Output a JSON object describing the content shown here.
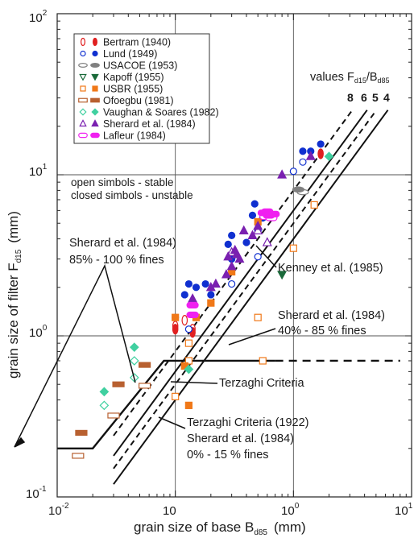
{
  "chart_data": {
    "type": "scatter",
    "title": "",
    "xlabel": "grain size of base B",
    "xlabel_sub": "d85",
    "xlabel_unit": "(mm)",
    "ylabel": "grain size of filter F",
    "ylabel_sub": "d15",
    "ylabel_unit": "(mm)",
    "x_scale": "log",
    "y_scale": "log",
    "xlim": [
      0.01,
      10
    ],
    "ylim": [
      0.1,
      100
    ],
    "x_ticks": [
      {
        "base": "10",
        "exp": "-2"
      },
      {
        "base": "10",
        "exp": "0"
      },
      {
        "base": "10",
        "exp": "1"
      }
    ],
    "x_tick_labels_plain": [
      "10",
      "10"
    ],
    "y_ticks": [
      {
        "base": "10",
        "exp": "-1"
      },
      {
        "base": "10",
        "exp": "0"
      },
      {
        "base": "10",
        "exp": "1"
      },
      {
        "base": "10",
        "exp": "2"
      }
    ],
    "grid": "major",
    "legend_placement": "top-left",
    "series": [
      {
        "name": "Bertram (1940)",
        "color": "#e02020",
        "open": [
          [
            0.1,
            1.15
          ],
          [
            0.12,
            1.25
          ],
          [
            0.14,
            1.1
          ]
        ],
        "closed": [
          [
            0.1,
            1.1
          ],
          [
            1.7,
            13.5
          ],
          [
            0.14,
            1.05
          ]
        ]
      },
      {
        "name": "Lund (1949)",
        "color": "#1030d0",
        "open": [
          [
            0.13,
            1.1
          ],
          [
            0.3,
            2.1
          ],
          [
            0.5,
            3.1
          ],
          [
            1.0,
            10.5
          ],
          [
            1.2,
            12.0
          ]
        ],
        "closed": [
          [
            0.12,
            1.8
          ],
          [
            0.13,
            2.1
          ],
          [
            0.15,
            2.0
          ],
          [
            0.18,
            2.1
          ],
          [
            0.2,
            1.8
          ],
          [
            0.28,
            3.7
          ],
          [
            0.3,
            3.0
          ],
          [
            0.4,
            3.8
          ],
          [
            0.45,
            5.6
          ],
          [
            0.47,
            6.6
          ],
          [
            0.5,
            4.5
          ],
          [
            0.55,
            5.4
          ],
          [
            1.2,
            14.0
          ],
          [
            1.4,
            14.0
          ],
          [
            1.7,
            15.5
          ],
          [
            0.1,
            1.3
          ],
          [
            0.3,
            4.2
          ]
        ]
      },
      {
        "name": "USACOE (1953)",
        "color": "#808080",
        "open": [
          [
            1.2,
            7.8
          ]
        ],
        "closed": [
          [
            1.1,
            8.1
          ]
        ]
      },
      {
        "name": "Kapoff (1955)",
        "color": "#1a6a3a",
        "open": [],
        "closed": [
          [
            0.8,
            2.4
          ]
        ]
      },
      {
        "name": "USBR (1955)",
        "color": "#f07818",
        "open": [
          [
            0.13,
            0.9
          ],
          [
            0.5,
            1.3
          ],
          [
            0.55,
            0.7
          ],
          [
            0.1,
            0.42
          ],
          [
            0.13,
            0.7
          ],
          [
            1.5,
            6.5
          ],
          [
            1.0,
            3.5
          ]
        ],
        "closed": [
          [
            0.1,
            1.3
          ],
          [
            0.12,
            0.65
          ],
          [
            0.13,
            0.37
          ],
          [
            0.15,
            1.3
          ],
          [
            0.2,
            1.6
          ],
          [
            0.3,
            2.5
          ],
          [
            0.5,
            5.1
          ]
        ]
      },
      {
        "name": "Ofoegbu (1981)",
        "color": "#b86030",
        "open": [
          [
            0.015,
            0.18
          ],
          [
            0.03,
            0.32
          ],
          [
            0.055,
            0.49
          ]
        ],
        "closed": [
          [
            0.016,
            0.25
          ],
          [
            0.033,
            0.5
          ],
          [
            0.055,
            0.66
          ]
        ]
      },
      {
        "name": "Vaughan & Soares (1982)",
        "color": "#40d0a0",
        "open": [
          [
            0.025,
            0.37
          ],
          [
            0.045,
            0.7
          ],
          [
            0.045,
            0.55
          ]
        ],
        "closed": [
          [
            0.025,
            0.45
          ],
          [
            0.045,
            0.85
          ],
          [
            0.13,
            0.62
          ],
          [
            2.0,
            13.0
          ]
        ]
      },
      {
        "name": "Sherard et al. (1984)",
        "color": "#7a20b0",
        "open": [
          [
            0.3,
            3.3
          ],
          [
            0.5,
            4.5
          ],
          [
            0.6,
            3.8
          ]
        ],
        "closed": [
          [
            0.2,
            2.0
          ],
          [
            0.22,
            2.1
          ],
          [
            0.27,
            2.4
          ],
          [
            0.28,
            3.1
          ],
          [
            0.3,
            2.7
          ],
          [
            0.32,
            3.4
          ],
          [
            0.33,
            3.2
          ],
          [
            0.35,
            3.0
          ],
          [
            0.38,
            4.5
          ],
          [
            0.45,
            4.2
          ],
          [
            0.5,
            4.8
          ],
          [
            0.6,
            5.6
          ],
          [
            0.8,
            10.0
          ],
          [
            1.4,
            13.0
          ],
          [
            0.14,
            1.7
          ]
        ]
      },
      {
        "name": "Lafleur (1984)",
        "color": "#f020f0",
        "open": [
          [
            0.58,
            5.5
          ],
          [
            0.65,
            5.4
          ]
        ],
        "closed": [
          [
            0.14,
            1.35
          ],
          [
            0.14,
            1.55
          ],
          [
            0.56,
            5.8
          ],
          [
            0.62,
            5.6
          ],
          [
            0.68,
            5.7
          ],
          [
            0.6,
            5.9
          ]
        ]
      }
    ],
    "lines": {
      "ratio_lines": [
        {
          "ratio": 8,
          "style": "dashed",
          "x_range": [
            0.03,
            3.2
          ]
        },
        {
          "ratio": 6,
          "style": "solid",
          "x_range": [
            0.03,
            4.2
          ]
        },
        {
          "ratio": 5,
          "style": "dashed",
          "x_range": [
            0.03,
            5.0
          ]
        },
        {
          "ratio": 4,
          "style": "solid",
          "x_range": [
            0.03,
            6.3
          ]
        }
      ],
      "sherard_fines_boundary": {
        "points": [
          [
            0.01,
            0.2
          ],
          [
            0.02,
            0.2
          ],
          [
            0.08,
            0.7
          ],
          [
            0.7,
            0.7
          ]
        ],
        "dashed_extension": [
          [
            0.7,
            0.7
          ],
          [
            8.0,
            0.7
          ]
        ]
      }
    },
    "annotations": {
      "values_label": "values F",
      "values_sub1": "d15",
      "values_slash": "/B",
      "values_sub2": "d85",
      "ratio_numbers": [
        "8",
        "6",
        "5",
        "4"
      ],
      "simbols_line1": "open simbols - stable",
      "simbols_line2": "closed simbols - unstable",
      "sherard_85_l1": "Sherard et al. (1984)",
      "sherard_85_l2": "85% - 100 % fines",
      "kenney": "Kenney et al. (1985)",
      "sherard_40_l1": "Sherard et al. (1984)",
      "sherard_40_l2": "40% - 85 % fines",
      "terzaghi": "Terzaghi Criteria",
      "terzaghi_1922": "Terzaghi Criteria (1922)",
      "sherard_0_l1": "Sherard et al. (1984)",
      "sherard_0_l2": "0% - 15 % fines"
    }
  }
}
